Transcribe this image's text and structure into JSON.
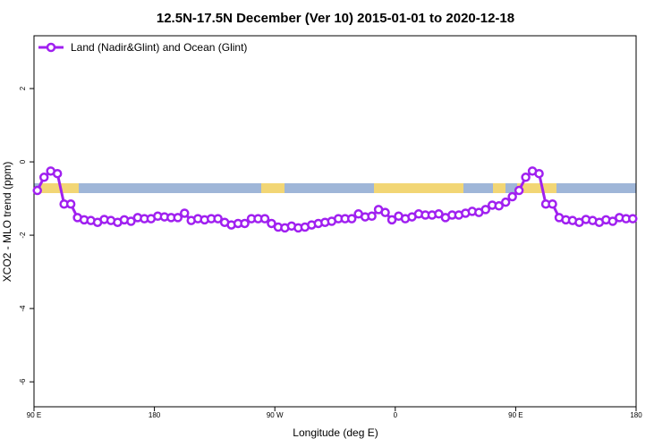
{
  "chart_data": {
    "type": "line",
    "title": "12.5N-17.5N December (Ver 10)   2015-01-01 to 2020-12-18",
    "xlabel": "Longitude (deg E)",
    "ylabel": "XCO2 - MLO trend (ppm)",
    "x": [
      92.5,
      97.5,
      102.5,
      107.5,
      112.5,
      117.5,
      122.5,
      127.5,
      132.5,
      137.5,
      142.5,
      147.5,
      152.5,
      157.5,
      162.5,
      167.5,
      172.5,
      177.5,
      182.5,
      187.5,
      192.5,
      197.5,
      202.5,
      207.5,
      212.5,
      217.5,
      222.5,
      227.5,
      232.5,
      237.5,
      242.5,
      247.5,
      252.5,
      257.5,
      262.5,
      267.5,
      272.5,
      277.5,
      282.5,
      287.5,
      292.5,
      297.5,
      302.5,
      307.5,
      312.5,
      317.5,
      322.5,
      327.5,
      332.5,
      337.5,
      342.5,
      347.5,
      352.5,
      357.5,
      362.5,
      367.5,
      372.5,
      377.5,
      382.5,
      387.5,
      392.5,
      397.5,
      402.5,
      407.5,
      412.5,
      417.5,
      422.5,
      427.5,
      432.5,
      437.5,
      442.5,
      447.5,
      452.5,
      457.5,
      462.5,
      467.5,
      472.5,
      477.5,
      482.5,
      487.5,
      492.5,
      497.5,
      502.5,
      507.5,
      512.5,
      517.5,
      522.5,
      527.5,
      532.5,
      537.5
    ],
    "series": [
      {
        "name": "Land (Nadir&Glint) and Ocean (Glint)",
        "color": "#a020f0",
        "values": [
          -0.78,
          -0.42,
          -0.25,
          -0.32,
          -1.15,
          -1.15,
          -1.52,
          -1.58,
          -1.6,
          -1.65,
          -1.57,
          -1.6,
          -1.65,
          -1.58,
          -1.62,
          -1.52,
          -1.55,
          -1.55,
          -1.48,
          -1.5,
          -1.52,
          -1.52,
          -1.4,
          -1.6,
          -1.55,
          -1.58,
          -1.55,
          -1.55,
          -1.65,
          -1.72,
          -1.68,
          -1.68,
          -1.55,
          -1.55,
          -1.55,
          -1.68,
          -1.78,
          -1.8,
          -1.75,
          -1.8,
          -1.78,
          -1.72,
          -1.68,
          -1.65,
          -1.62,
          -1.55,
          -1.55,
          -1.55,
          -1.42,
          -1.5,
          -1.48,
          -1.3,
          -1.38,
          -1.58,
          -1.48,
          -1.55,
          -1.5,
          -1.42,
          -1.45,
          -1.45,
          -1.42,
          -1.52,
          -1.45,
          -1.45,
          -1.4,
          -1.35,
          -1.38,
          -1.3,
          -1.18,
          -1.2,
          -1.1,
          -0.95,
          -0.78,
          -0.42,
          -0.25,
          -0.32,
          -1.15,
          -1.15,
          -1.52,
          -1.58,
          -1.6,
          -1.65,
          -1.57,
          -1.6,
          -1.65,
          -1.58,
          -1.62,
          -1.52,
          -1.55,
          -1.55
        ]
      }
    ],
    "xlim": [
      90,
      540
    ],
    "xticks": [
      {
        "value": 90,
        "label": "90 E"
      },
      180,
      {
        "value": 270,
        "label": "90 W"
      },
      {
        "value": 360,
        "label": "0"
      },
      {
        "value": 450,
        "label": "90 E"
      },
      {
        "value": 540,
        "label": "180"
      }
    ],
    "ylim": [
      -6.68,
      3.44
    ],
    "yticks": [
      -6,
      -4,
      -2,
      0,
      2
    ],
    "legend": "upper left"
  }
}
